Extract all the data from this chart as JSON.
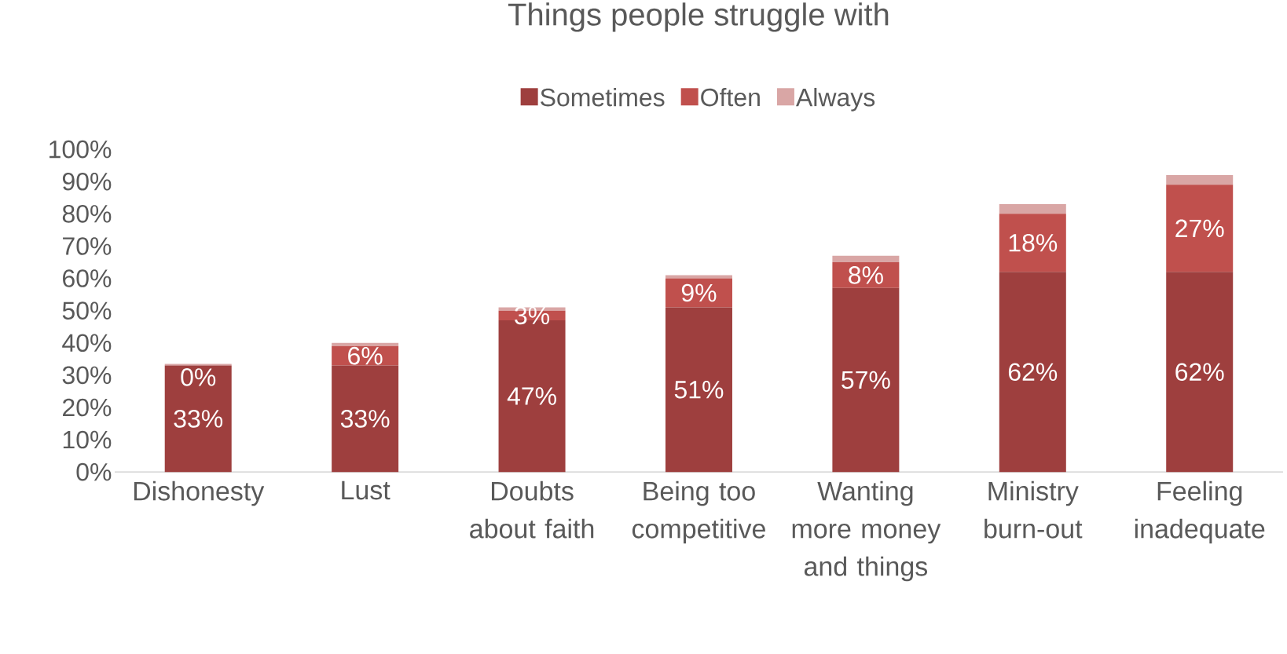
{
  "chart_data": {
    "type": "bar",
    "stacked": true,
    "title": "Things people struggle with",
    "categories": [
      "Dishonesty",
      "Lust",
      "Doubts about faith",
      "Being too competitive",
      "Wanting more money and things",
      "Ministry burn-out",
      "Feeling inadequate"
    ],
    "series": [
      {
        "name": "Sometimes",
        "color": "#9e3f3e",
        "values": [
          33,
          33,
          47,
          51,
          57,
          62,
          62
        ],
        "value_labels": [
          "33%",
          "33%",
          "47%",
          "51%",
          "57%",
          "62%",
          "62%"
        ]
      },
      {
        "name": "Often",
        "color": "#c0504d",
        "values": [
          0,
          6,
          3,
          9,
          8,
          18,
          27
        ],
        "value_labels": [
          "0%",
          "6%",
          "3%",
          "9%",
          "8%",
          "18%",
          "27%"
        ]
      },
      {
        "name": "Always",
        "color": "#d9a6a5",
        "values": [
          0.5,
          1,
          1,
          1,
          2,
          3,
          3
        ]
      }
    ],
    "ylim": [
      0,
      100
    ],
    "yticks": [
      {
        "value": 0,
        "label": "0%"
      },
      {
        "value": 10,
        "label": "10%"
      },
      {
        "value": 20,
        "label": "20%"
      },
      {
        "value": 30,
        "label": "30%"
      },
      {
        "value": 40,
        "label": "40%"
      },
      {
        "value": 50,
        "label": "50%"
      },
      {
        "value": 60,
        "label": "60%"
      },
      {
        "value": 70,
        "label": "70%"
      },
      {
        "value": 80,
        "label": "80%"
      },
      {
        "value": 90,
        "label": "90%"
      },
      {
        "value": 100,
        "label": "100%"
      }
    ],
    "legend": "top"
  }
}
